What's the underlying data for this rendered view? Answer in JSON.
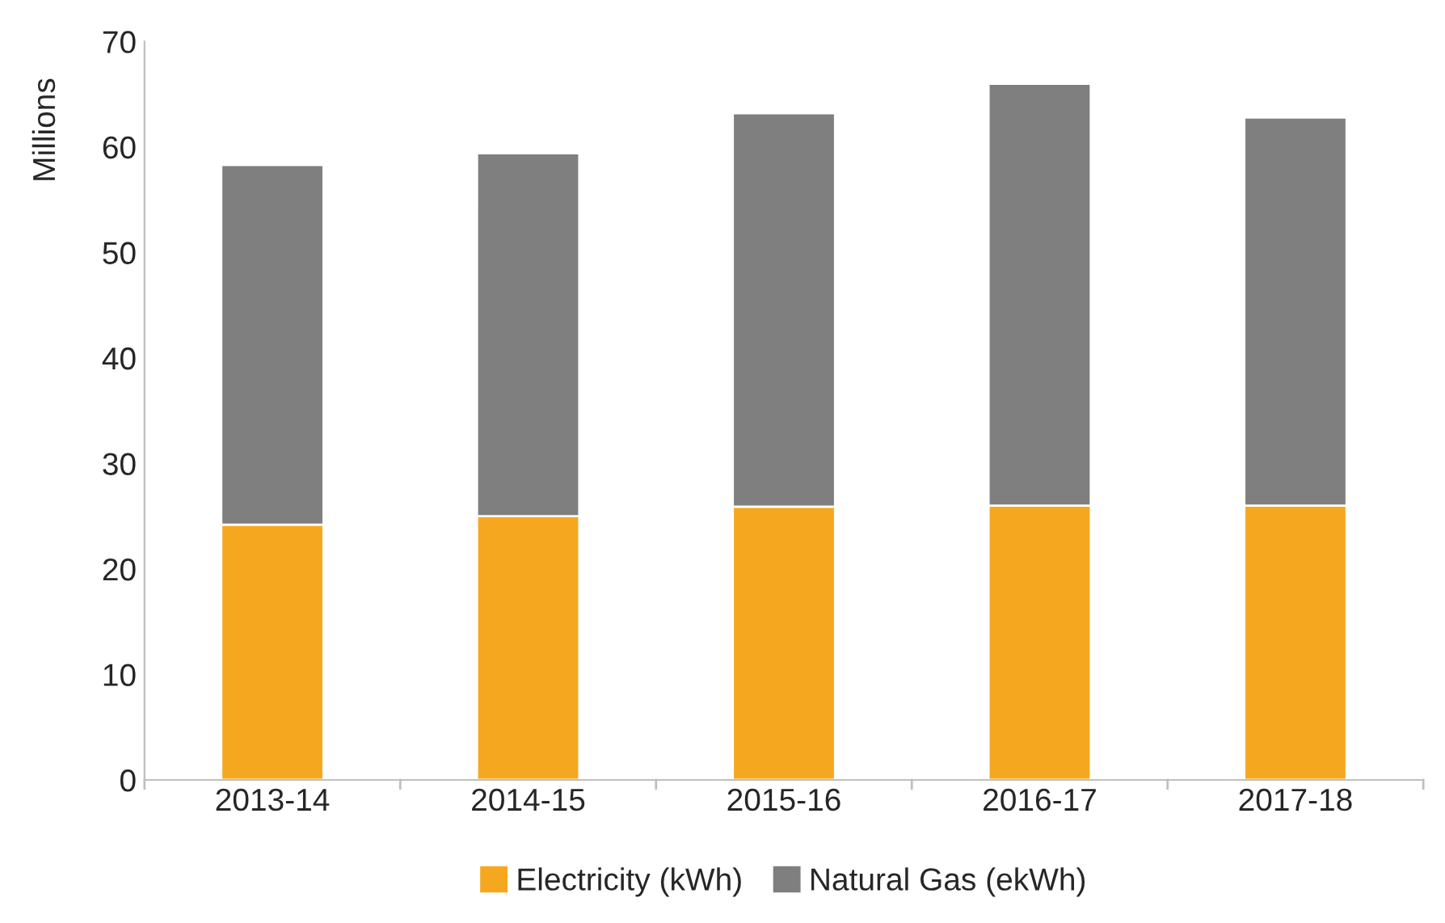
{
  "chart_data": {
    "type": "bar",
    "stacked": true,
    "ylabel": "Millions",
    "categories": [
      "2013-14",
      "2014-15",
      "2015-16",
      "2016-17",
      "2017-18"
    ],
    "series": [
      {
        "name": "Electricity (kWh)",
        "color": "#f5a81f",
        "values": [
          24.2,
          25.0,
          25.9,
          26.0,
          26.0
        ]
      },
      {
        "name": "Natural Gas (ekWh)",
        "color": "#7f7f7f",
        "values": [
          34.1,
          34.4,
          37.3,
          40.0,
          36.8
        ]
      }
    ],
    "ylim": [
      0,
      70
    ],
    "yticks": [
      0,
      10,
      20,
      30,
      40,
      50,
      60,
      70
    ],
    "grid": false,
    "legend": "bottom"
  }
}
